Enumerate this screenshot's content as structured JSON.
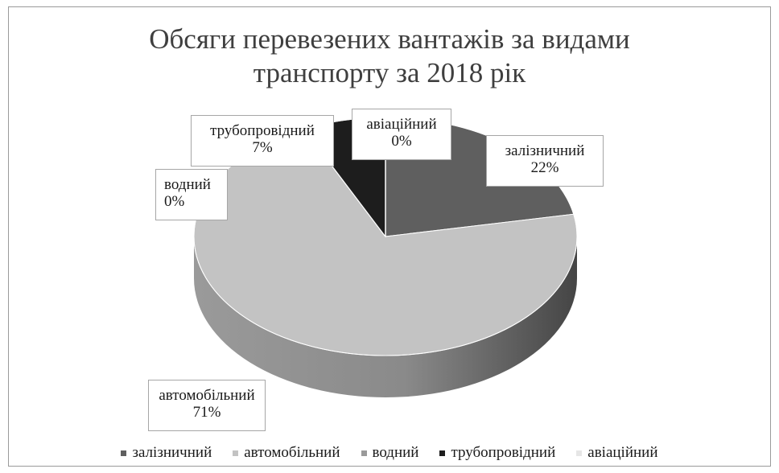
{
  "chart_data": {
    "type": "pie",
    "title_line1": "Обсяги перевезених вантажів за видами",
    "title_line2": "транспорту за 2018 рік",
    "slices": [
      {
        "name": "залізничний",
        "value": 22,
        "label": "22%",
        "color": "#5f5f5f"
      },
      {
        "name": "автомобільний",
        "value": 71,
        "label": "71%",
        "color": "#c3c3c3"
      },
      {
        "name": "водний",
        "value": 0,
        "label": "0%",
        "color": "#9a9a9a"
      },
      {
        "name": "трубопровідний",
        "value": 7,
        "label": "7%",
        "color": "#1d1d1d"
      },
      {
        "name": "авіаційний",
        "value": 0,
        "label": "0%",
        "color": "#e6e6e6"
      }
    ],
    "legend_position": "bottom",
    "style": "3d"
  }
}
